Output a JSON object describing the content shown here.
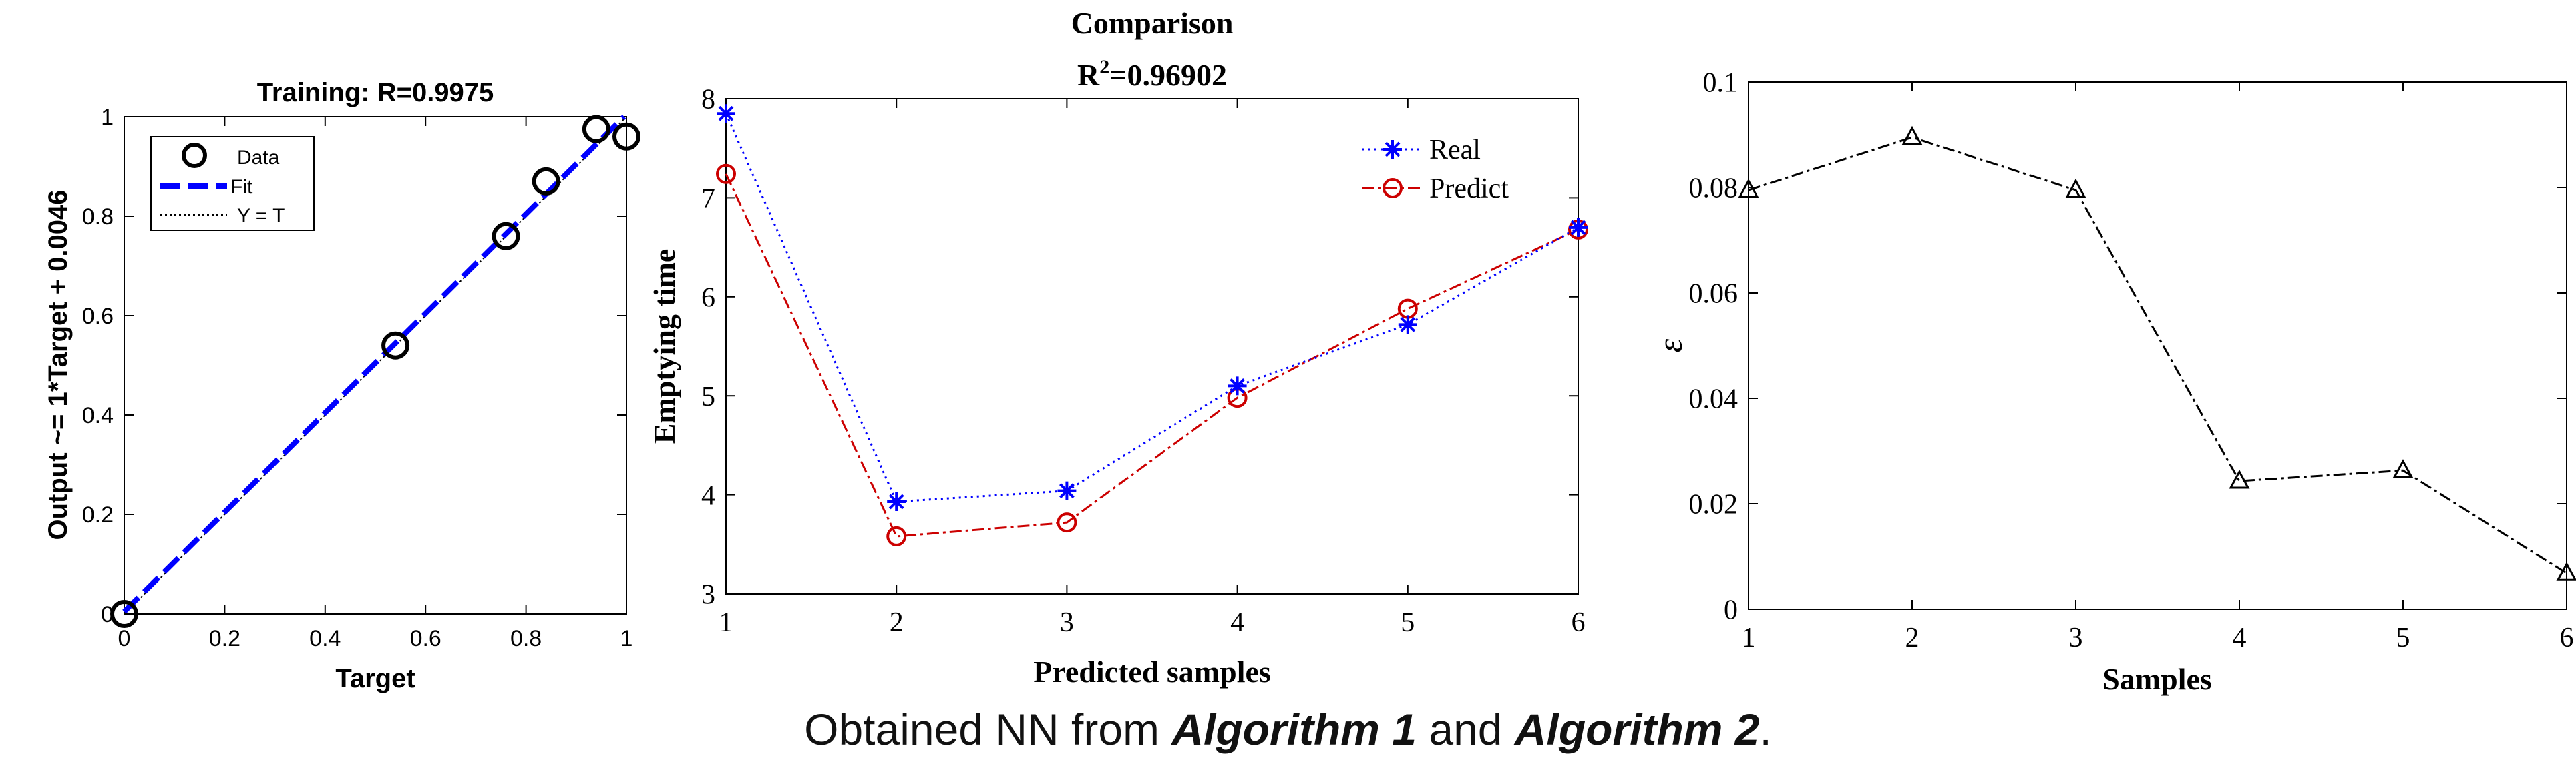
{
  "chart_data": [
    {
      "type": "scatter",
      "title": "Training: R=0.9975",
      "xlabel": "Target",
      "ylabel": "Output ~= 1*Target + 0.0046",
      "xlim": [
        0,
        1
      ],
      "ylim": [
        0,
        1
      ],
      "xticks": [
        "0",
        "0.2",
        "0.4",
        "0.6",
        "0.8",
        "1"
      ],
      "yticks": [
        "0",
        "0.2",
        "0.4",
        "0.6",
        "0.8",
        "1"
      ],
      "legend": [
        "Data",
        "Fit",
        "Y = T"
      ],
      "legend_position": "top-left",
      "points": [
        {
          "x": 0.0,
          "y": 0.0
        },
        {
          "x": 0.54,
          "y": 0.54
        },
        {
          "x": 0.76,
          "y": 0.76
        },
        {
          "x": 0.84,
          "y": 0.87
        },
        {
          "x": 0.94,
          "y": 0.975
        },
        {
          "x": 1.0,
          "y": 0.96
        }
      ],
      "fit": {
        "slope": 1,
        "intercept": 0.0046
      },
      "colors": {
        "data": "#000000",
        "fit": "#0000ff",
        "identity": "#000000"
      }
    },
    {
      "type": "line",
      "title": "Comparison",
      "subtitle_base": "R",
      "subtitle_sup": "2",
      "subtitle_value": "=0.96902",
      "xlabel": "Predicted samples",
      "ylabel": "Emptying time",
      "xlim": [
        1,
        6
      ],
      "ylim": [
        3,
        8
      ],
      "xticks": [
        "1",
        "2",
        "3",
        "4",
        "5",
        "6"
      ],
      "yticks": [
        "3",
        "4",
        "5",
        "6",
        "7",
        "8"
      ],
      "x": [
        1,
        2,
        3,
        4,
        5,
        6
      ],
      "legend_position": "top-right",
      "series": [
        {
          "name": "Real",
          "values": [
            7.85,
            3.93,
            4.04,
            5.1,
            5.72,
            6.7
          ],
          "color": "#0000ff"
        },
        {
          "name": "Predict",
          "values": [
            7.24,
            3.58,
            3.72,
            4.98,
            5.88,
            6.68
          ],
          "color": "#cc0000"
        }
      ]
    },
    {
      "type": "line",
      "xlabel": "Samples",
      "ylabel": "ε",
      "xlim": [
        1,
        6
      ],
      "ylim": [
        0,
        0.1
      ],
      "xticks": [
        "1",
        "2",
        "3",
        "4",
        "5",
        "6"
      ],
      "yticks": [
        "0",
        "0.02",
        "0.04",
        "0.06",
        "0.08",
        "0.1"
      ],
      "x": [
        1,
        2,
        3,
        4,
        5,
        6
      ],
      "series": [
        {
          "values": [
            0.0795,
            0.0895,
            0.0795,
            0.0243,
            0.0263,
            0.0068
          ],
          "color": "#000000"
        }
      ]
    }
  ],
  "caption": {
    "prefix": "Obtained NN from ",
    "alg1": "Algorithm 1",
    "middle": " and ",
    "alg2": "Algorithm 2",
    "suffix": "."
  }
}
